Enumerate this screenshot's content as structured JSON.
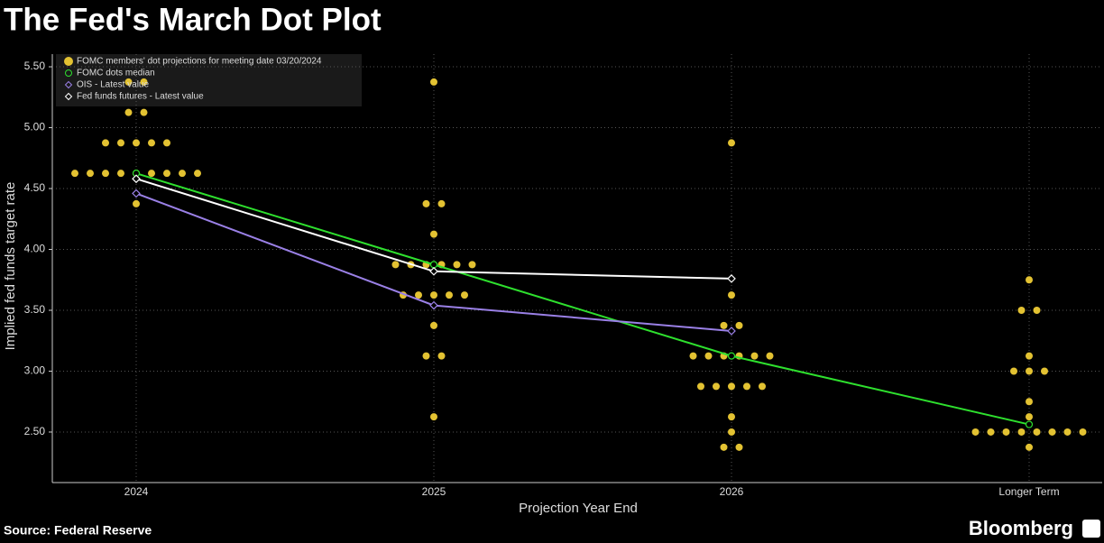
{
  "chart_data": {
    "type": "dotplot",
    "title": "The Fed's March Dot Plot",
    "y_label": "Implied fed funds target rate",
    "x_label": "Projection Year End",
    "source": "Source: Federal Reserve",
    "brand": "Bloomberg",
    "categories": [
      "2024",
      "2025",
      "2026",
      "Longer Term"
    ],
    "ylim": [
      2.085,
      5.604
    ],
    "yticks": [
      {
        "value": 2.5,
        "label": "2.50"
      },
      {
        "value": 3.0,
        "label": "3.00"
      },
      {
        "value": 3.5,
        "label": "3.50"
      },
      {
        "value": 4.0,
        "label": "4.00"
      },
      {
        "value": 4.5,
        "label": "4.50"
      },
      {
        "value": 5.0,
        "label": "5.00"
      },
      {
        "value": 5.5,
        "label": "5.50"
      }
    ],
    "grid": true,
    "legend": "top-left",
    "dots": {
      "name": "FOMC members' dot projections for meeting date 03/20/2024",
      "color": "#e3c232",
      "values": [
        [
          5.375,
          5.375,
          5.125,
          5.125,
          4.875,
          4.875,
          4.875,
          4.875,
          4.875,
          4.625,
          4.625,
          4.625,
          4.625,
          4.625,
          4.625,
          4.625,
          4.625,
          4.625,
          4.375
        ],
        [
          5.375,
          4.375,
          4.375,
          4.125,
          3.875,
          3.875,
          3.875,
          3.875,
          3.875,
          3.875,
          3.625,
          3.625,
          3.625,
          3.625,
          3.625,
          3.375,
          3.125,
          3.125,
          2.625
        ],
        [
          4.875,
          3.625,
          3.375,
          3.375,
          3.125,
          3.125,
          3.125,
          3.125,
          3.125,
          3.125,
          2.875,
          2.875,
          2.875,
          2.875,
          2.875,
          2.625,
          2.5,
          2.375,
          2.375
        ],
        [
          3.75,
          3.5,
          3.5,
          3.125,
          3.0,
          3.0,
          3.0,
          2.75,
          2.625,
          2.5,
          2.5,
          2.5,
          2.5,
          2.5,
          2.5,
          2.5,
          2.5,
          2.375
        ]
      ]
    },
    "series": [
      {
        "name": "FOMC dots median",
        "color": "#2ee02e",
        "marker": "circle",
        "values": [
          4.625,
          3.875,
          3.125,
          2.5625
        ]
      },
      {
        "name": "OIS - Latest value",
        "color": "#9a80e6",
        "marker": "diamond",
        "values": [
          4.46,
          3.54,
          3.33,
          null
        ]
      },
      {
        "name": "Fed funds futures - Latest value",
        "color": "#ffffff",
        "marker": "diamond",
        "values": [
          4.58,
          3.82,
          3.76,
          null
        ]
      }
    ]
  }
}
